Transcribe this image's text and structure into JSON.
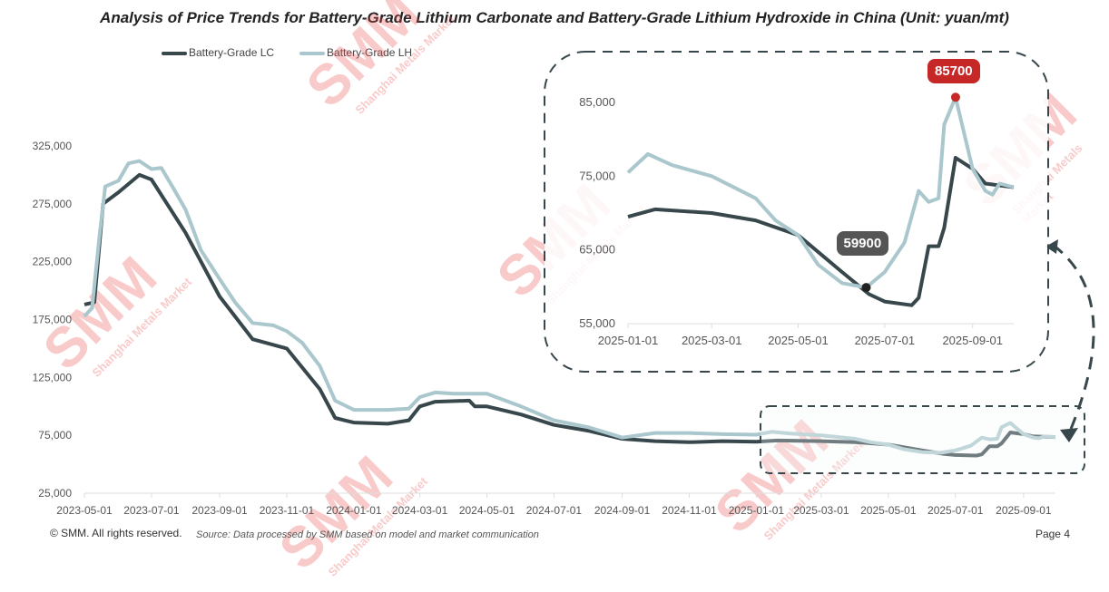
{
  "title": "Analysis of Price Trends for Battery-Grade Lithium Carbonate and Battery-Grade Lithium Hydroxide in China (Unit: yuan/mt)",
  "footer": {
    "copyright": "© SMM. All rights reserved.",
    "source": "Source: Data processed by SMM based on model and market communication",
    "page": "Page 4"
  },
  "watermark": {
    "text": "SMM",
    "subtext": "Shanghai Metals Market"
  },
  "colors": {
    "lc": "#37474b",
    "lh": "#a9c7cc",
    "peak": "#c62828",
    "low": "#444444"
  },
  "chart_data": [
    {
      "type": "line",
      "title": "main",
      "ylim": [
        25000,
        325000
      ],
      "yticks": [
        "25,000",
        "75,000",
        "125,000",
        "175,000",
        "225,000",
        "275,000",
        "325,000"
      ],
      "yvalues": [
        25000,
        75000,
        125000,
        175000,
        225000,
        275000,
        325000
      ],
      "xticks": [
        "2023-05-01",
        "2023-07-01",
        "2023-09-01",
        "2023-11-01",
        "2024-01-01",
        "2024-03-01",
        "2024-05-01",
        "2024-07-01",
        "2024-09-01",
        "2024-11-01",
        "2025-01-01",
        "2025-03-01",
        "2025-05-01",
        "2025-07-01",
        "2025-09-01"
      ],
      "xlim": [
        "2023-05-01",
        "2025-09-30"
      ],
      "legend": [
        "Battery-Grade LC",
        "Battery-Grade LH"
      ],
      "series": [
        {
          "name": "Battery-Grade LC",
          "points": [
            [
              "2023-05-01",
              178000
            ],
            [
              "2023-05-08",
              185000
            ],
            [
              "2023-05-15",
              250000
            ],
            [
              "2023-05-20",
              290000
            ],
            [
              "2023-06-01",
              295000
            ],
            [
              "2023-06-10",
              310000
            ],
            [
              "2023-06-20",
              312000
            ],
            [
              "2023-07-01",
              305000
            ],
            [
              "2023-07-10",
              306000
            ],
            [
              "2023-07-20",
              290000
            ],
            [
              "2023-08-01",
              270000
            ],
            [
              "2023-08-15",
              235000
            ],
            [
              "2023-09-01",
              210000
            ],
            [
              "2023-09-15",
              190000
            ],
            [
              "2023-10-01",
              172000
            ],
            [
              "2023-10-20",
              170000
            ],
            [
              "2023-11-01",
              165000
            ],
            [
              "2023-11-15",
              155000
            ],
            [
              "2023-12-01",
              135000
            ],
            [
              "2023-12-15",
              105000
            ],
            [
              "2024-01-01",
              97000
            ],
            [
              "2024-02-01",
              97000
            ],
            [
              "2024-02-20",
              98000
            ],
            [
              "2024-03-01",
              108000
            ],
            [
              "2024-03-15",
              112000
            ],
            [
              "2024-04-01",
              111000
            ],
            [
              "2024-05-01",
              111000
            ],
            [
              "2024-05-15",
              106000
            ],
            [
              "2024-06-01",
              100000
            ],
            [
              "2024-07-01",
              88000
            ],
            [
              "2024-08-01",
              82000
            ],
            [
              "2024-08-15",
              78000
            ],
            [
              "2024-09-01",
              73000
            ],
            [
              "2024-10-01",
              77000
            ],
            [
              "2024-11-01",
              77000
            ],
            [
              "2024-12-01",
              76000
            ],
            [
              "2025-01-01",
              75500
            ],
            [
              "2025-01-15",
              78000
            ],
            [
              "2025-02-01",
              76500
            ],
            [
              "2025-03-01",
              75000
            ],
            [
              "2025-04-01",
              72000
            ],
            [
              "2025-04-15",
              69000
            ],
            [
              "2025-05-01",
              67000
            ],
            [
              "2025-05-15",
              63000
            ],
            [
              "2025-06-01",
              60500
            ],
            [
              "2025-06-18",
              59900
            ],
            [
              "2025-07-01",
              62000
            ],
            [
              "2025-07-15",
              66000
            ],
            [
              "2025-07-25",
              73000
            ],
            [
              "2025-08-01",
              71500
            ],
            [
              "2025-08-08",
              72000
            ],
            [
              "2025-08-12",
              82000
            ],
            [
              "2025-08-20",
              85700
            ],
            [
              "2025-09-01",
              76000
            ],
            [
              "2025-09-10",
              73000
            ],
            [
              "2025-09-15",
              72500
            ],
            [
              "2025-09-20",
              74000
            ],
            [
              "2025-09-30",
              73500
            ]
          ]
        },
        {
          "name": "Battery-Grade LH",
          "points": [
            [
              "2023-05-01",
              188000
            ],
            [
              "2023-05-10",
              190000
            ],
            [
              "2023-05-18",
              275000
            ],
            [
              "2023-06-01",
              285000
            ],
            [
              "2023-06-20",
              300000
            ],
            [
              "2023-07-01",
              296000
            ],
            [
              "2023-08-01",
              250000
            ],
            [
              "2023-09-01",
              195000
            ],
            [
              "2023-10-01",
              158000
            ],
            [
              "2023-11-01",
              150000
            ],
            [
              "2023-12-01",
              115000
            ],
            [
              "2023-12-15",
              90000
            ],
            [
              "2024-01-01",
              86000
            ],
            [
              "2024-02-01",
              85000
            ],
            [
              "2024-02-20",
              88000
            ],
            [
              "2024-03-01",
              100000
            ],
            [
              "2024-03-15",
              104000
            ],
            [
              "2024-04-15",
              105000
            ],
            [
              "2024-04-20",
              100000
            ],
            [
              "2024-05-01",
              100000
            ],
            [
              "2024-06-01",
              93000
            ],
            [
              "2024-07-01",
              84000
            ],
            [
              "2024-08-01",
              79000
            ],
            [
              "2024-09-01",
              72000
            ],
            [
              "2024-10-01",
              70000
            ],
            [
              "2024-11-01",
              69000
            ],
            [
              "2024-12-01",
              70000
            ],
            [
              "2025-01-01",
              69500
            ],
            [
              "2025-01-20",
              70500
            ],
            [
              "2025-03-01",
              70000
            ],
            [
              "2025-04-01",
              69000
            ],
            [
              "2025-05-01",
              67000
            ],
            [
              "2025-06-01",
              62000
            ],
            [
              "2025-06-20",
              59000
            ],
            [
              "2025-07-01",
              58000
            ],
            [
              "2025-07-20",
              57500
            ],
            [
              "2025-07-25",
              58500
            ],
            [
              "2025-08-01",
              65500
            ],
            [
              "2025-08-08",
              65500
            ],
            [
              "2025-08-12",
              68000
            ],
            [
              "2025-08-20",
              77500
            ],
            [
              "2025-09-01",
              76000
            ],
            [
              "2025-09-10",
              74000
            ],
            [
              "2025-09-30",
              73500
            ]
          ]
        }
      ]
    },
    {
      "type": "line",
      "title": "inset",
      "ylim": [
        55000,
        88000
      ],
      "yticks": [
        "55,000",
        "65,000",
        "75,000",
        "85,000"
      ],
      "yvalues": [
        55000,
        65000,
        75000,
        85000
      ],
      "xticks": [
        "2025-01-01",
        "2025-03-01",
        "2025-05-01",
        "2025-07-01",
        "2025-09-01"
      ],
      "xlim": [
        "2025-01-01",
        "2025-09-30"
      ],
      "annotations": [
        {
          "label": "85700",
          "date": "2025-08-20",
          "value": 85700,
          "kind": "max"
        },
        {
          "label": "59900",
          "date": "2025-06-18",
          "value": 59900,
          "kind": "min"
        }
      ]
    }
  ]
}
